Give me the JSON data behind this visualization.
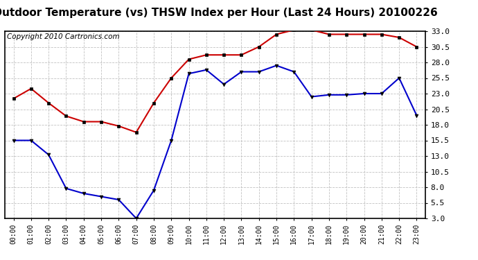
{
  "title": "Outdoor Temperature (vs) THSW Index per Hour (Last 24 Hours) 20100226",
  "copyright": "Copyright 2010 Cartronics.com",
  "hours": [
    "00:00",
    "01:00",
    "02:00",
    "03:00",
    "04:00",
    "05:00",
    "06:00",
    "07:00",
    "08:00",
    "09:00",
    "10:00",
    "11:00",
    "12:00",
    "13:00",
    "14:00",
    "15:00",
    "16:00",
    "17:00",
    "18:00",
    "19:00",
    "20:00",
    "21:00",
    "22:00",
    "23:00"
  ],
  "red_data": [
    22.2,
    23.8,
    21.5,
    19.4,
    18.5,
    18.5,
    17.8,
    16.8,
    21.5,
    25.5,
    28.5,
    29.2,
    29.2,
    29.2,
    30.5,
    32.5,
    33.2,
    33.2,
    32.5,
    32.5,
    32.5,
    32.5,
    32.0,
    30.5
  ],
  "blue_data": [
    15.5,
    15.5,
    13.2,
    7.8,
    7.0,
    6.5,
    6.0,
    3.0,
    7.5,
    15.5,
    26.2,
    26.8,
    24.5,
    26.5,
    26.5,
    27.5,
    26.5,
    22.5,
    22.8,
    22.8,
    23.0,
    23.0,
    25.5,
    19.5
  ],
  "red_color": "#cc0000",
  "blue_color": "#0000cc",
  "bg_color": "#ffffff",
  "grid_color": "#bbbbbb",
  "ylim_min": 3.0,
  "ylim_max": 33.0,
  "yticks": [
    3.0,
    5.5,
    8.0,
    10.5,
    13.0,
    15.5,
    18.0,
    20.5,
    23.0,
    25.5,
    28.0,
    30.5,
    33.0
  ],
  "title_fontsize": 11,
  "copyright_fontsize": 7.5,
  "marker_size": 3.5
}
